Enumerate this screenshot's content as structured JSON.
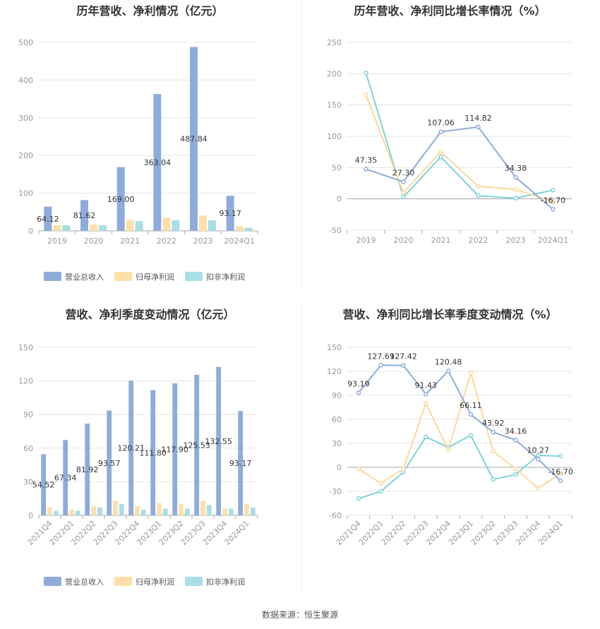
{
  "colors": {
    "revenue": "#8eacdb",
    "netprofit": "#fde0a9",
    "deducted": "#a8dfe6",
    "rev_line": "#8eacdb",
    "np_line": "#fcd99a",
    "ded_line": "#7fd3da"
  },
  "footer": "数据来源：恒生聚源",
  "chart_data": [
    {
      "type": "bar",
      "title": "历年营收、净利情况（亿元）",
      "categories": [
        "2019",
        "2020",
        "2021",
        "2022",
        "2023",
        "2024Q1"
      ],
      "ylim": [
        0,
        500
      ],
      "yticks": [
        0,
        100,
        200,
        300,
        400,
        500
      ],
      "series": [
        {
          "name": "营业总收入",
          "values": [
            64.12,
            81.62,
            169.0,
            363.04,
            487.84,
            93.17
          ],
          "labels": [
            "64.12",
            "81.62",
            "169.00",
            "363.04",
            "487.84",
            "93.17"
          ]
        },
        {
          "name": "归母净利润",
          "values": [
            15,
            17,
            29,
            35,
            41,
            12
          ]
        },
        {
          "name": "扣非净利润",
          "values": [
            15,
            15,
            26,
            28,
            28,
            8
          ]
        }
      ]
    },
    {
      "type": "line",
      "title": "历年营收、净利同比增长率情况（%）",
      "categories": [
        "2019",
        "2020",
        "2021",
        "2022",
        "2023",
        "2024Q1"
      ],
      "ylim": [
        -50,
        250
      ],
      "yticks": [
        -50,
        0,
        50,
        100,
        150,
        200,
        250
      ],
      "series": [
        {
          "name": "营业总收入同比增长率",
          "values": [
            47.35,
            27.3,
            107.06,
            114.82,
            34.38,
            -16.7
          ],
          "labels": [
            "47.35",
            "27.30",
            "107.06",
            "114.82",
            "34.38",
            "-16.70"
          ]
        },
        {
          "name": "归母净利润同比增长率",
          "values": [
            166,
            10,
            75,
            20,
            15,
            -5
          ]
        },
        {
          "name": "扣非净利润同比增长率",
          "values": [
            201,
            3,
            67,
            5,
            1,
            14
          ]
        }
      ]
    },
    {
      "type": "bar",
      "title": "营收、净利季度变动情况（亿元）",
      "categories": [
        "2021Q4",
        "2022Q1",
        "2022Q2",
        "2022Q3",
        "2022Q4",
        "2023Q1",
        "2023Q2",
        "2023Q3",
        "2023Q4",
        "2024Q1"
      ],
      "ylim": [
        0,
        150
      ],
      "yticks": [
        0,
        30,
        60,
        90,
        120,
        150
      ],
      "series": [
        {
          "name": "营业总收入",
          "values": [
            54.52,
            67.34,
            81.92,
            93.57,
            120.21,
            111.8,
            117.9,
            125.53,
            132.55,
            93.17
          ],
          "labels": [
            "54.52",
            "67.34",
            "81.92",
            "93.57",
            "120.21",
            "111.80",
            "117.90",
            "125.53",
            "132.55",
            "93.17"
          ]
        },
        {
          "name": "归母净利润",
          "values": [
            7,
            5,
            8,
            13,
            8,
            11,
            10,
            13,
            6,
            10
          ]
        },
        {
          "name": "扣非净利润",
          "values": [
            4,
            4,
            7,
            10,
            5,
            6,
            6,
            9,
            6,
            7
          ]
        }
      ]
    },
    {
      "type": "line",
      "title": "营收、净利同比增长率季度变动情况（%）",
      "categories": [
        "2021Q4",
        "2022Q1",
        "2022Q2",
        "2022Q3",
        "2022Q4",
        "2023Q1",
        "2023Q2",
        "2023Q3",
        "2023Q4",
        "2024Q1"
      ],
      "ylim": [
        -60,
        150
      ],
      "yticks": [
        -60,
        -30,
        0,
        30,
        60,
        90,
        120,
        150
      ],
      "series": [
        {
          "name": "营业总收入同比增长率",
          "values": [
            93.19,
            127.69,
            127.42,
            91.43,
            120.48,
            66.11,
            43.92,
            34.16,
            10.27,
            -16.7
          ],
          "labels": [
            "93.19",
            "127.69",
            "127.42",
            "91.43",
            "120.48",
            "66.11",
            "43.92",
            "34.16",
            "10.27",
            "-16.70"
          ]
        },
        {
          "name": "归母净利润同比增长率",
          "values": [
            -2,
            -20,
            -2,
            80,
            22,
            118,
            20,
            -2,
            -26,
            -8
          ]
        },
        {
          "name": "扣非净利润同比增长率",
          "values": [
            -39,
            -30,
            -6,
            38,
            25,
            40,
            -15,
            -9,
            15,
            14
          ]
        }
      ]
    }
  ]
}
